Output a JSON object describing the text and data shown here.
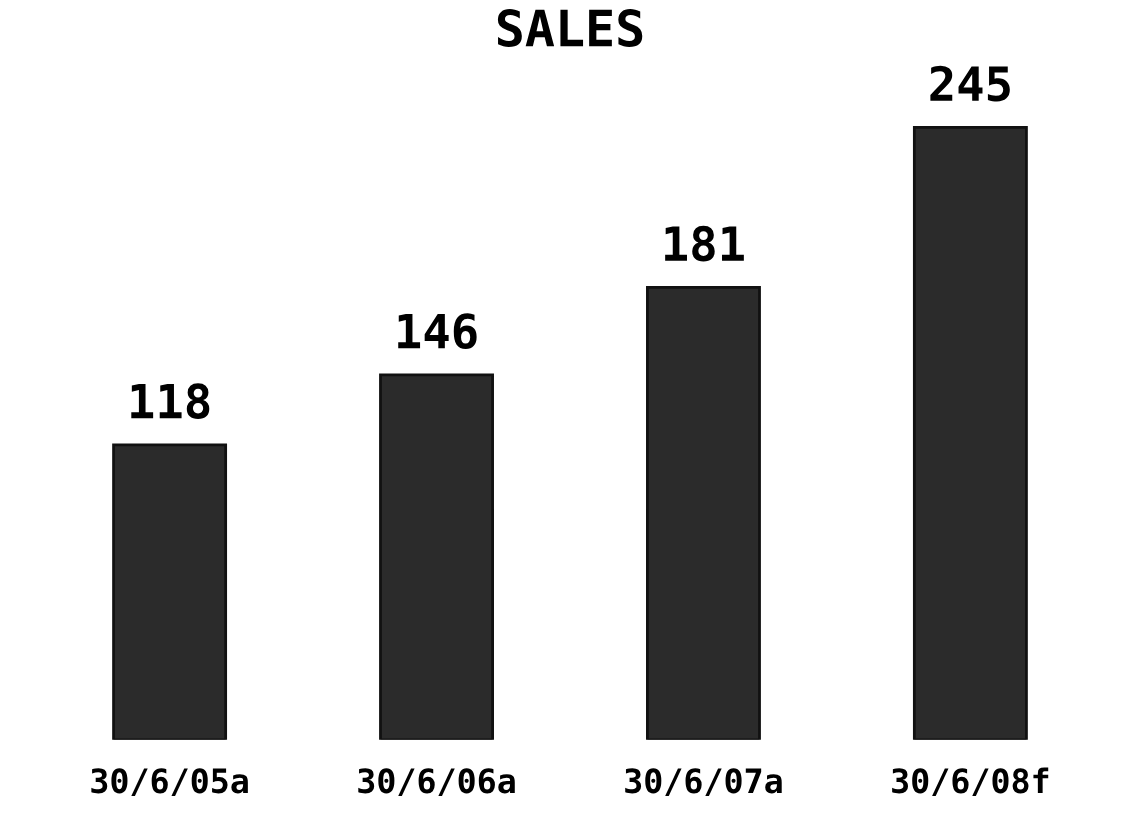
{
  "chart_data": {
    "type": "bar",
    "title": "SALES",
    "categories": [
      "30/6/05a",
      "30/6/06a",
      "30/6/07a",
      "30/6/08f"
    ],
    "values": [
      118,
      146,
      181,
      245
    ],
    "color": "#2b2b2b",
    "data_labels": true,
    "grid": false
  }
}
